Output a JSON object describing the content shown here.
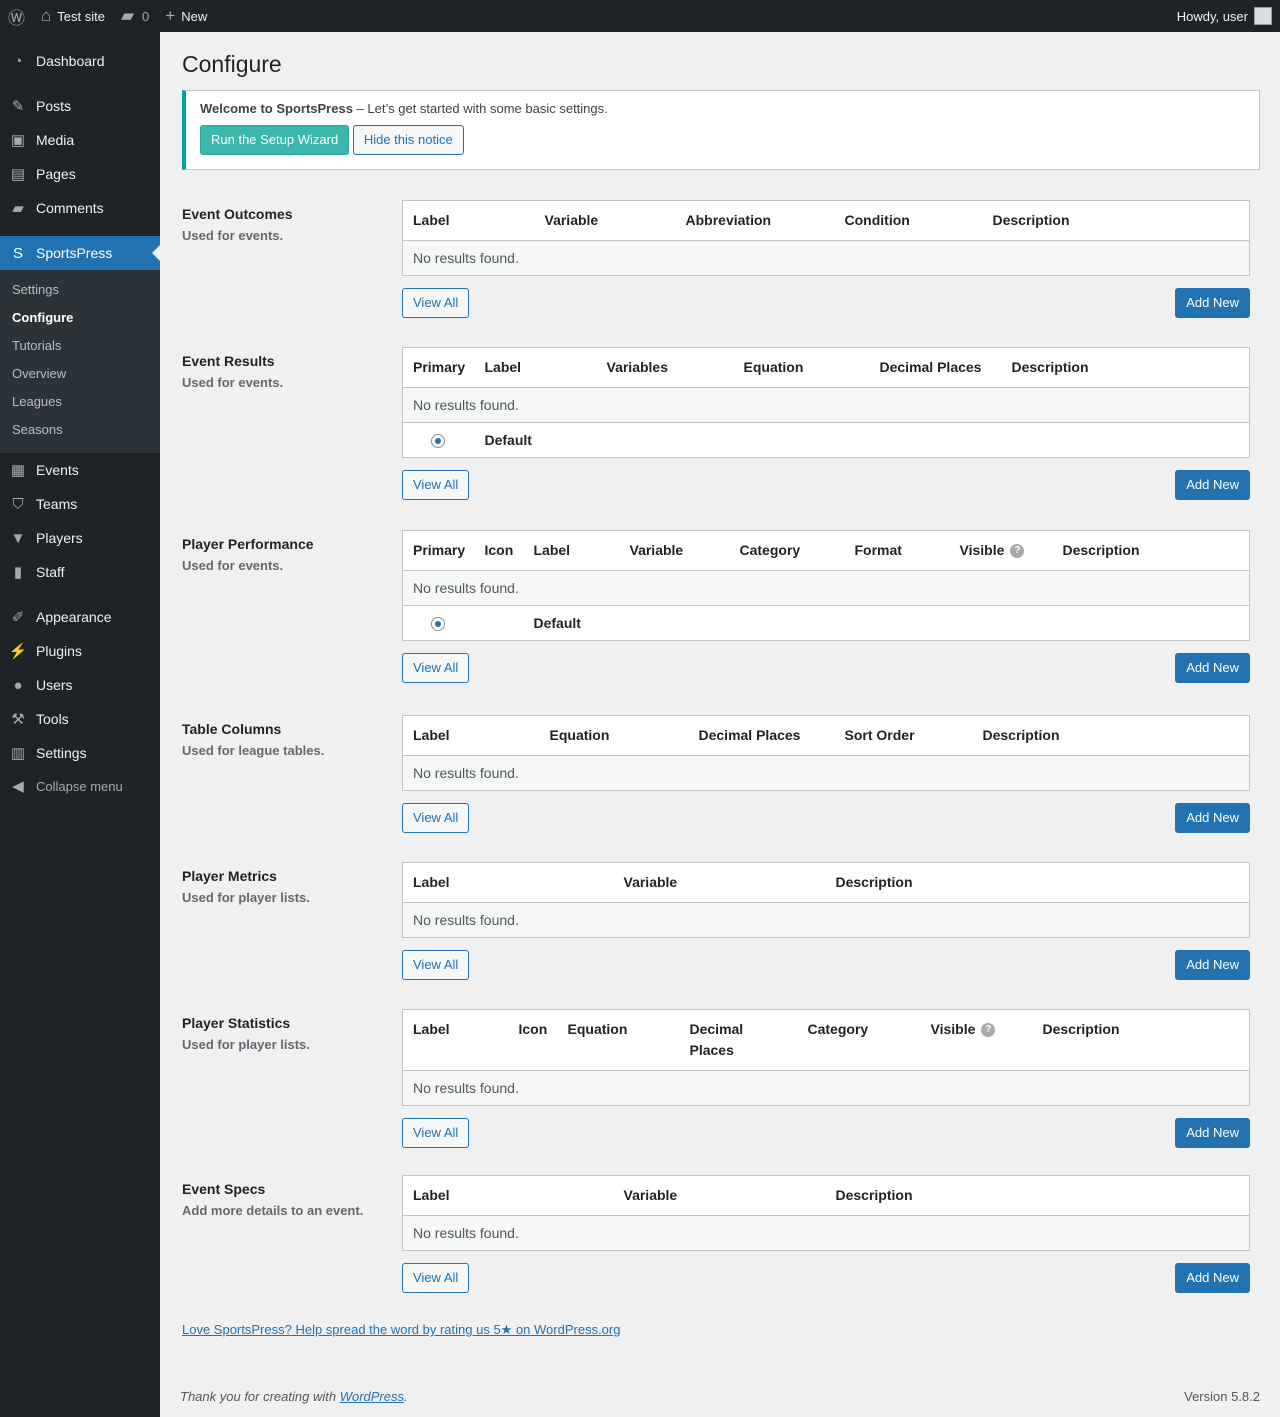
{
  "adminbar": {
    "site": "Test site",
    "comments": "0",
    "new": "New",
    "howdy": "Howdy, user"
  },
  "sidebar": {
    "items": [
      {
        "label": "Dashboard",
        "icon": "dashboard-icon"
      },
      {
        "label": "Posts",
        "icon": "pin-icon"
      },
      {
        "label": "Media",
        "icon": "media-icon"
      },
      {
        "label": "Pages",
        "icon": "pages-icon"
      },
      {
        "label": "Comments",
        "icon": "comment-icon"
      },
      {
        "label": "SportsPress",
        "icon": "sportspress-icon"
      },
      {
        "label": "Events",
        "icon": "calendar-icon"
      },
      {
        "label": "Teams",
        "icon": "shield-icon"
      },
      {
        "label": "Players",
        "icon": "shirt-icon"
      },
      {
        "label": "Staff",
        "icon": "staff-icon"
      },
      {
        "label": "Appearance",
        "icon": "brush-icon"
      },
      {
        "label": "Plugins",
        "icon": "plug-icon"
      },
      {
        "label": "Users",
        "icon": "user-icon"
      },
      {
        "label": "Tools",
        "icon": "wrench-icon"
      },
      {
        "label": "Settings",
        "icon": "settings-icon"
      }
    ],
    "submenu": [
      "Settings",
      "Configure",
      "Tutorials",
      "Overview",
      "Leagues",
      "Seasons"
    ],
    "collapse": "Collapse menu"
  },
  "page": {
    "title": "Configure"
  },
  "notice": {
    "strong": "Welcome to SportsPress",
    "text": " – Let’s get started with some basic settings.",
    "wizard": "Run the Setup Wizard",
    "hide": "Hide this notice"
  },
  "common": {
    "no_results": "No results found.",
    "view_all": "View All",
    "add_new": "Add New",
    "default": "Default"
  },
  "sections": [
    {
      "title": "Event Outcomes",
      "desc": "Used for events.",
      "columns": [
        "Label",
        "Variable",
        "Abbreviation",
        "Condition",
        "Description"
      ]
    },
    {
      "title": "Event Results",
      "desc": "Used for events.",
      "columns": [
        "Primary",
        "Label",
        "Variables",
        "Equation",
        "Decimal Places",
        "Description"
      ],
      "default_row": true
    },
    {
      "title": "Player Performance",
      "desc": "Used for events.",
      "columns": [
        "Primary",
        "Icon",
        "Label",
        "Variable",
        "Category",
        "Format",
        "Visible",
        "Description"
      ],
      "default_row": true
    },
    {
      "title": "Table Columns",
      "desc": "Used for league tables.",
      "columns": [
        "Label",
        "Equation",
        "Decimal Places",
        "Sort Order",
        "Description"
      ]
    },
    {
      "title": "Player Metrics",
      "desc": "Used for player lists.",
      "columns": [
        "Label",
        "Variable",
        "Description"
      ]
    },
    {
      "title": "Player Statistics",
      "desc": "Used for player lists.",
      "columns": [
        "Label",
        "Icon",
        "Equation",
        "Decimal Places",
        "Category",
        "Visible",
        "Description"
      ]
    },
    {
      "title": "Event Specs",
      "desc": "Add more details to an event.",
      "columns": [
        "Label",
        "Variable",
        "Description"
      ]
    }
  ],
  "rate_link": "Love SportsPress? Help spread the word by rating us 5★ on WordPress.org",
  "footer": {
    "thanks": "Thank you for creating with ",
    "wp": "WordPress",
    "end": ".",
    "version": "Version 5.8.2"
  }
}
